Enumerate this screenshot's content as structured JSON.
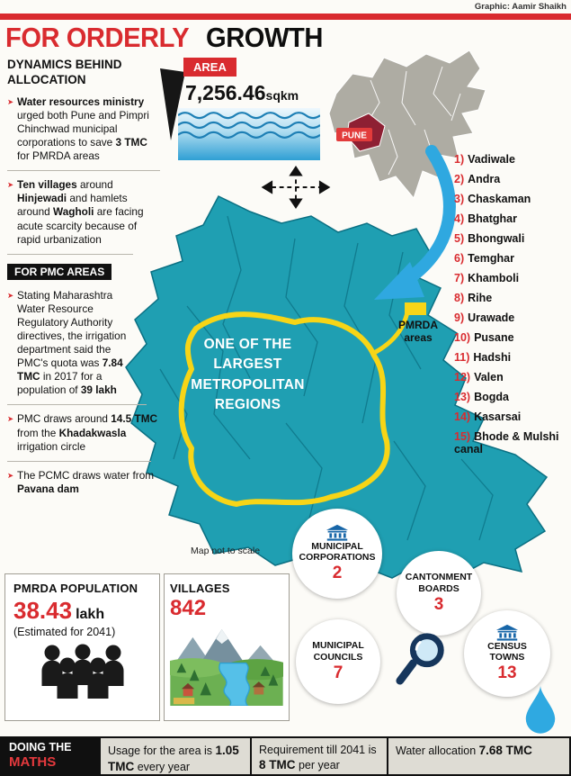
{
  "credit": "Graphic: Aamir Shaikh",
  "title": {
    "red": "FOR ORDERLY",
    "black": "GROWTH"
  },
  "left_panel": {
    "heading": "DYNAMICS BEHIND ALLOCATION",
    "marker": "➤",
    "bullets_top": [
      [
        {
          "t": "Water resources ministry",
          "b": 1
        },
        {
          "t": " urged both Pune and Pimpri Chinchwad municipal corporations to save ",
          "b": 0
        },
        {
          "t": "3 TMC",
          "b": 1
        },
        {
          "t": " for PMRDA areas",
          "b": 0
        }
      ],
      [
        {
          "t": "Ten villages",
          "b": 1
        },
        {
          "t": " around ",
          "b": 0
        },
        {
          "t": "Hinjewadi",
          "b": 1
        },
        {
          "t": " and hamlets around ",
          "b": 0
        },
        {
          "t": "Wagholi",
          "b": 1
        },
        {
          "t": " are facing acute scarcity because of rapid urbanization",
          "b": 0
        }
      ]
    ],
    "pmc_label": "FOR PMC AREAS",
    "bullets_pmc": [
      [
        {
          "t": "Stating Maharashtra Water Resource Regulatory Authority directives, the irrigation department said the PMC's quota was ",
          "b": 0
        },
        {
          "t": "7.84 TMC",
          "b": 1
        },
        {
          "t": " in 2017 for a population of ",
          "b": 0
        },
        {
          "t": "39 lakh",
          "b": 1
        }
      ],
      [
        {
          "t": "PMC draws around ",
          "b": 0
        },
        {
          "t": "14.5 TMC",
          "b": 1
        },
        {
          "t": " from the ",
          "b": 0
        },
        {
          "t": "Khadakwasla",
          "b": 1
        },
        {
          "t": " irrigation circle",
          "b": 0
        }
      ],
      [
        {
          "t": "The PCMC draws water from ",
          "b": 0
        },
        {
          "t": "Pavana dam",
          "b": 1
        }
      ]
    ]
  },
  "area": {
    "label": "AREA",
    "value": "7,256.46",
    "unit": "sqkm"
  },
  "state_map": {
    "pune": "PUNE"
  },
  "catchments": [
    {
      "num": "1)",
      "name": "Vadiwale"
    },
    {
      "num": "2)",
      "name": "Andra"
    },
    {
      "num": "3)",
      "name": "Chaskaman"
    },
    {
      "num": "4)",
      "name": "Bhatghar"
    },
    {
      "num": "5)",
      "name": "Bhongwali"
    },
    {
      "num": "6)",
      "name": "Temghar"
    },
    {
      "num": "7)",
      "name": "Khamboli"
    },
    {
      "num": "8)",
      "name": "Rihe"
    },
    {
      "num": "9)",
      "name": "Urawade"
    },
    {
      "num": "10)",
      "name": "Pusane"
    },
    {
      "num": "11)",
      "name": "Hadshi"
    },
    {
      "num": "12)",
      "name": "Valen"
    },
    {
      "num": "13)",
      "name": "Bogda"
    },
    {
      "num": "14)",
      "name": "Kasarsai"
    },
    {
      "num": "15)",
      "name": "Bhode & Mulshi canal"
    }
  ],
  "map": {
    "caption_lines": [
      "ONE OF THE",
      "LARGEST",
      "METROPOLITAN",
      "REGIONS"
    ],
    "legend_lines": [
      "PMRDA",
      "areas"
    ],
    "note": "Map not to scale"
  },
  "population": {
    "heading": "PMRDA POPULATION",
    "value": "38.43",
    "unit": "lakh",
    "sub": "(Estimated for 2041)"
  },
  "villages": {
    "heading": "VILLAGES",
    "value": "842"
  },
  "stats": [
    {
      "label": "MUNICIPAL CORPORATIONS",
      "value": "2"
    },
    {
      "label": "CANTONMENT BOARDS",
      "value": "3"
    },
    {
      "label": "MUNICIPAL COUNCILS",
      "value": "7"
    },
    {
      "label": "CENSUS TOWNS",
      "value": "13"
    }
  ],
  "footer": {
    "head_top": "DOING THE",
    "head_bottom": "MATHS",
    "cells": [
      {
        "pre": "Usage for the area is ",
        "bold": "1.05 TMC",
        "post": " every year"
      },
      {
        "pre": "Requirement till 2041 is ",
        "bold": "8 TMC",
        "post": " per year"
      },
      {
        "pre": "Water allocation ",
        "bold": "7.68 TMC",
        "post": ""
      }
    ]
  },
  "colors": {
    "accent_red": "#d92b2f",
    "map_teal": "#1f9fb2",
    "boundary_yellow": "#f7d517",
    "arrow_blue": "#2fa8e0"
  }
}
